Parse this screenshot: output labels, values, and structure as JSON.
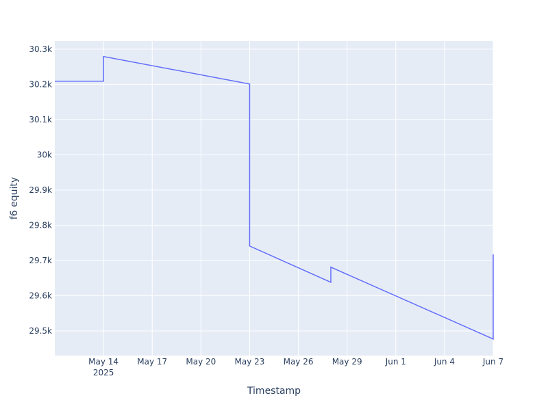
{
  "chart_data": {
    "type": "line",
    "xlabel": "Timestamp",
    "ylabel": "f6 equity",
    "x": [
      "2025-05-11",
      "2025-05-14",
      "2025-05-14",
      "2025-05-23",
      "2025-05-23",
      "2025-05-28",
      "2025-05-28",
      "2025-06-07",
      "2025-06-07"
    ],
    "series": [
      {
        "name": "f6 equity",
        "color": "#636efa",
        "values": [
          30209,
          30209,
          30279,
          30201,
          29741,
          29638,
          29681,
          29477,
          29717
        ]
      }
    ],
    "xlim": [
      "2025-05-11",
      "2025-06-07"
    ],
    "xticks": [
      {
        "value": "2025-05-14",
        "label": "May 14\n2025"
      },
      {
        "value": "2025-05-17",
        "label": "May 17"
      },
      {
        "value": "2025-05-20",
        "label": "May 20"
      },
      {
        "value": "2025-05-23",
        "label": "May 23"
      },
      {
        "value": "2025-05-26",
        "label": "May 26"
      },
      {
        "value": "2025-05-29",
        "label": "May 29"
      },
      {
        "value": "2025-06-01",
        "label": "Jun 1"
      },
      {
        "value": "2025-06-04",
        "label": "Jun 4"
      },
      {
        "value": "2025-06-07",
        "label": "Jun 7"
      }
    ],
    "ylim": [
      29430,
      30323
    ],
    "yticks": [
      {
        "value": 29500,
        "label": "29.5k"
      },
      {
        "value": 29600,
        "label": "29.6k"
      },
      {
        "value": 29700,
        "label": "29.7k"
      },
      {
        "value": 29800,
        "label": "29.8k"
      },
      {
        "value": 29900,
        "label": "29.9k"
      },
      {
        "value": 30000,
        "label": "30k"
      },
      {
        "value": 30100,
        "label": "30.1k"
      },
      {
        "value": 30200,
        "label": "30.2k"
      },
      {
        "value": 30300,
        "label": "30.3k"
      }
    ],
    "grid": true,
    "background": "#e5ecf6"
  }
}
